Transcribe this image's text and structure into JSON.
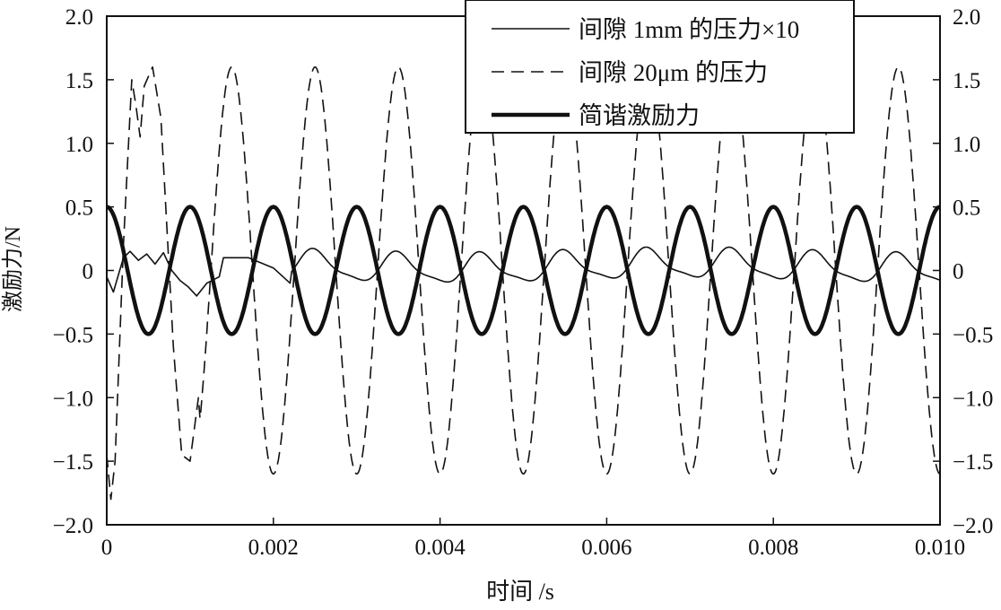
{
  "chart_data": {
    "type": "line",
    "title": "",
    "xlabel": "时间 /s",
    "ylabel": "激励力/N",
    "xlim": [
      0,
      0.01
    ],
    "ylim": [
      -2.0,
      2.0
    ],
    "grid": false,
    "legend_placement": "top-center",
    "x_ticks": [
      "0",
      "0.002",
      "0.004",
      "0.006",
      "0.008",
      "0.010"
    ],
    "x_tick_values": [
      0,
      0.002,
      0.004,
      0.006,
      0.008,
      0.01
    ],
    "y_ticks": [
      "2.0",
      "1.5",
      "1.0",
      "0.5",
      "0",
      "−0.5",
      "−1.0",
      "−1.5",
      "−2.0"
    ],
    "y_tick_values": [
      2.0,
      1.5,
      1.0,
      0.5,
      0,
      -0.5,
      -1.0,
      -1.5,
      -2.0
    ],
    "series": [
      {
        "name": "间隙 1mm 的压力×10",
        "style": "thin-solid",
        "model": {
          "offset": 0.03,
          "amplitude": 0.11,
          "frequency_hz": 1000,
          "peak_time": 0.0025,
          "harmonic_amplitude": 0.03
        },
        "early_points": [
          [
            0,
            -0.05
          ],
          [
            8e-05,
            -0.17
          ],
          [
            0.0002,
            0.1
          ],
          [
            0.00028,
            0.15
          ],
          [
            0.00038,
            0.08
          ],
          [
            0.00048,
            0.13
          ],
          [
            0.00058,
            0.05
          ],
          [
            0.00068,
            0.14
          ],
          [
            0.00078,
            0.0
          ],
          [
            0.00088,
            -0.08
          ],
          [
            0.00098,
            -0.13
          ],
          [
            0.00108,
            -0.2
          ],
          [
            0.0012,
            -0.1
          ],
          [
            0.00135,
            -0.05
          ],
          [
            0.0014,
            0.1
          ],
          [
            0.0017,
            0.1
          ],
          [
            0.002,
            0.02
          ],
          [
            0.0022,
            -0.1
          ]
        ]
      },
      {
        "name": "间隙 20μm 的压力",
        "style": "dashed",
        "model": {
          "offset": 0,
          "amplitude": 1.6,
          "frequency_hz": 1000,
          "peak_time": 0.0015
        },
        "early_points": [
          [
            0,
            -1.45
          ],
          [
            5e-05,
            -1.8
          ],
          [
            0.0001,
            -1.5
          ],
          [
            0.0002,
            0.2
          ],
          [
            0.0003,
            1.5
          ],
          [
            0.00035,
            1.3
          ],
          [
            0.0004,
            1.05
          ],
          [
            0.00045,
            1.45
          ],
          [
            0.00055,
            1.6
          ],
          [
            0.00065,
            1.2
          ],
          [
            0.0008,
            -0.6
          ],
          [
            0.0009,
            -1.45
          ],
          [
            0.001,
            -1.5
          ],
          [
            0.0011,
            -1.0
          ]
        ]
      },
      {
        "name": "简谐激励力",
        "style": "thick-solid",
        "model": {
          "offset": 0,
          "amplitude": 0.5,
          "frequency_hz": 1000,
          "peak_time": 0
        }
      }
    ]
  }
}
